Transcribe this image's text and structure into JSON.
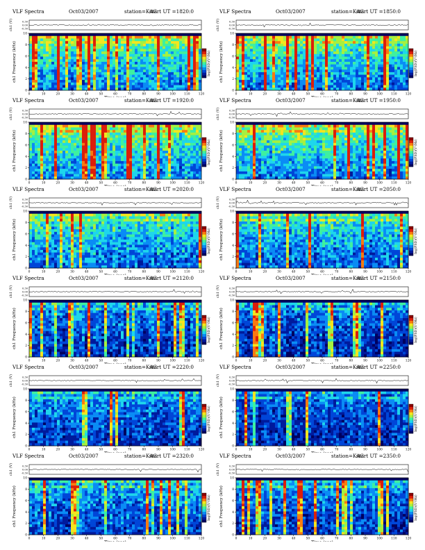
{
  "figure": {
    "colors": {
      "colormap": [
        "#000060",
        "#001a9c",
        "#0046d8",
        "#0a8cf5",
        "#1ed6ec",
        "#3ef0a0",
        "#a6f040",
        "#f5e51e",
        "#fa7a10",
        "#dc1e0a",
        "#8c0000"
      ],
      "accent_dark": "#00003c"
    }
  },
  "chart_data": [
    {
      "type": "heatmap",
      "title": "VLF Spectra",
      "date": "Oct03/2007",
      "station": "station=KAG",
      "start_ut": "start  UT  =1820:0",
      "ylabel_top": "ch1 (V)",
      "ylabel_main": "ch1 Frequency (kHz)",
      "xlabel": "Time (sec)",
      "colorbar_label": "log(PSD)(V²/Hz)",
      "x_ticks": [
        "0",
        "10",
        "20",
        "30",
        "40",
        "50",
        "60",
        "70",
        "80",
        "90",
        "100",
        "110",
        "120"
      ],
      "y_ticks": [
        "0",
        "2",
        "4",
        "6",
        "8",
        "10"
      ],
      "top_ticks": [
        "0.30",
        "0.00",
        "-0.30"
      ],
      "xlim": [
        0,
        120
      ],
      "ylim": [
        0,
        10
      ],
      "activity": 0.72
    },
    {
      "type": "heatmap",
      "title": "VLF Spectra",
      "date": "Oct03/2007",
      "station": "station=KAG",
      "start_ut": "start  UT  =1850:0",
      "ylabel_top": "ch1 (V)",
      "ylabel_main": "ch1 Frequency (kHz)",
      "xlabel": "Time (sec)",
      "colorbar_label": "log(PSD)(V²/Hz)",
      "x_ticks": [
        "0",
        "10",
        "20",
        "30",
        "40",
        "50",
        "60",
        "70",
        "80",
        "90",
        "100",
        "110",
        "120"
      ],
      "y_ticks": [
        "0",
        "2",
        "4",
        "6",
        "8",
        "10"
      ],
      "top_ticks": [
        "0.30",
        "0.00",
        "-0.30"
      ],
      "xlim": [
        0,
        120
      ],
      "ylim": [
        0,
        10
      ],
      "activity": 0.7
    },
    {
      "type": "heatmap",
      "title": "VLF Spectra",
      "date": "Oct03/2007",
      "station": "station=KAG",
      "start_ut": "start  UT  =1920:0",
      "ylabel_top": "ch1 (V)",
      "ylabel_main": "ch1 Frequency (kHz)",
      "xlabel": "Time (sec)",
      "colorbar_label": "log(PSD)(V²/Hz)",
      "x_ticks": [
        "0",
        "10",
        "20",
        "30",
        "40",
        "50",
        "60",
        "70",
        "80",
        "90",
        "100",
        "110",
        "120"
      ],
      "y_ticks": [
        "0",
        "2",
        "4",
        "6",
        "8",
        "10"
      ],
      "top_ticks": [
        "0.30",
        "0.00",
        "-0.30"
      ],
      "xlim": [
        0,
        120
      ],
      "ylim": [
        0,
        10
      ],
      "activity": 0.75
    },
    {
      "type": "heatmap",
      "title": "VLF Spectra",
      "date": "Oct03/2007",
      "station": "station=KAG",
      "start_ut": "start  UT  =1950:0",
      "ylabel_top": "ch1 (V)",
      "ylabel_main": "ch1 Frequency (kHz)",
      "xlabel": "Time (sec)",
      "colorbar_label": "log(PSD)(V²/Hz)",
      "x_ticks": [
        "0",
        "10",
        "20",
        "30",
        "40",
        "50",
        "60",
        "70",
        "80",
        "90",
        "100",
        "110",
        "120"
      ],
      "y_ticks": [
        "0",
        "2",
        "4",
        "6",
        "8",
        "10"
      ],
      "top_ticks": [
        "0.30",
        "0.00",
        "-0.30"
      ],
      "xlim": [
        0,
        120
      ],
      "ylim": [
        0,
        10
      ],
      "activity": 0.73
    },
    {
      "type": "heatmap",
      "title": "VLF Spectra",
      "date": "Oct03/2007",
      "station": "station=KAG",
      "start_ut": "start  UT  =2020:0",
      "ylabel_top": "ch1 (V)",
      "ylabel_main": "ch1 Frequency (kHz)",
      "xlabel": "Time (sec)",
      "colorbar_label": "log(PSD)(V²/Hz)",
      "x_ticks": [
        "0",
        "10",
        "20",
        "30",
        "40",
        "50",
        "60",
        "70",
        "80",
        "90",
        "100",
        "110",
        "120"
      ],
      "y_ticks": [
        "0",
        "2",
        "4",
        "6",
        "8",
        "10"
      ],
      "top_ticks": [
        "0.30",
        "0.00",
        "-0.30"
      ],
      "xlim": [
        0,
        120
      ],
      "ylim": [
        0,
        10
      ],
      "activity": 0.62
    },
    {
      "type": "heatmap",
      "title": "VLF Spectra",
      "date": "Oct03/2007",
      "station": "station=KAG",
      "start_ut": "start  UT  =2050:0",
      "ylabel_top": "ch1 (V)",
      "ylabel_main": "ch1 Frequency (kHz)",
      "xlabel": "Time (sec)",
      "colorbar_label": "log(PSD)(V²/Hz)",
      "x_ticks": [
        "0",
        "10",
        "20",
        "30",
        "40",
        "50",
        "60",
        "70",
        "80",
        "90",
        "100",
        "110",
        "120"
      ],
      "y_ticks": [
        "0",
        "2",
        "4",
        "6",
        "8",
        "10"
      ],
      "top_ticks": [
        "0.30",
        "0.00",
        "-0.30"
      ],
      "xlim": [
        0,
        120
      ],
      "ylim": [
        0,
        10
      ],
      "activity": 0.6
    },
    {
      "type": "heatmap",
      "title": "VLF Spectra",
      "date": "Oct03/2007",
      "station": "station=KAG",
      "start_ut": "start  UT  =2120:0",
      "ylabel_top": "ch1 (V)",
      "ylabel_main": "ch1 Frequency (kHz)",
      "xlabel": "Time (sec)",
      "colorbar_label": "log(PSD)(V²/Hz)",
      "x_ticks": [
        "0",
        "10",
        "20",
        "30",
        "40",
        "50",
        "60",
        "70",
        "80",
        "90",
        "100",
        "110",
        "120"
      ],
      "y_ticks": [
        "0",
        "2",
        "4",
        "6",
        "8",
        "10"
      ],
      "top_ticks": [
        "0.30",
        "0.00",
        "-0.30"
      ],
      "xlim": [
        0,
        120
      ],
      "ylim": [
        0,
        10
      ],
      "activity": 0.38
    },
    {
      "type": "heatmap",
      "title": "VLF Spectra",
      "date": "Oct03/2007",
      "station": "station=KAG",
      "start_ut": "start  UT  =2150:0",
      "ylabel_top": "ch1 (V)",
      "ylabel_main": "ch1 Frequency (kHz)",
      "xlabel": "Time (sec)",
      "colorbar_label": "log(PSD)(V²/Hz)",
      "x_ticks": [
        "0",
        "10",
        "20",
        "30",
        "40",
        "50",
        "60",
        "70",
        "80",
        "90",
        "100",
        "110",
        "120"
      ],
      "y_ticks": [
        "0",
        "2",
        "4",
        "6",
        "8",
        "10"
      ],
      "top_ticks": [
        "0.30",
        "0.00",
        "-0.30"
      ],
      "xlim": [
        0,
        120
      ],
      "ylim": [
        0,
        10
      ],
      "activity": 0.36
    },
    {
      "type": "heatmap",
      "title": "VLF Spectra",
      "date": "Oct03/2007",
      "station": "station=KAG",
      "start_ut": "start  UT  =2220:0",
      "ylabel_top": "ch1 (V)",
      "ylabel_main": "ch1 Frequency (kHz)",
      "xlabel": "Time (sec)",
      "colorbar_label": "log(PSD)(V²/Hz)",
      "x_ticks": [
        "0",
        "10",
        "20",
        "30",
        "40",
        "50",
        "60",
        "70",
        "80",
        "90",
        "100",
        "110",
        "120"
      ],
      "y_ticks": [
        "0",
        "2",
        "4",
        "6",
        "8",
        "10"
      ],
      "top_ticks": [
        "0.30",
        "0.00",
        "-0.30"
      ],
      "xlim": [
        0,
        120
      ],
      "ylim": [
        0,
        10
      ],
      "activity": 0.4
    },
    {
      "type": "heatmap",
      "title": "VLF Spectra",
      "date": "Oct03/2007",
      "station": "station=KAG",
      "start_ut": "start  UT  =2250:0",
      "ylabel_top": "ch1 (V)",
      "ylabel_main": "ch1 Frequency (kHz)",
      "xlabel": "Time (sec)",
      "colorbar_label": "log(PSD)(V²/Hz)",
      "x_ticks": [
        "0",
        "10",
        "20",
        "30",
        "40",
        "50",
        "60",
        "70",
        "80",
        "90",
        "100",
        "110",
        "120"
      ],
      "y_ticks": [
        "0",
        "2",
        "4",
        "6",
        "8",
        "10"
      ],
      "top_ticks": [
        "0.30",
        "0.00",
        "-0.30"
      ],
      "xlim": [
        0,
        120
      ],
      "ylim": [
        0,
        10
      ],
      "activity": 0.34
    },
    {
      "type": "heatmap",
      "title": "VLF Spectra",
      "date": "Oct03/2007",
      "station": "station=KAG",
      "start_ut": "start  UT  =2320:0",
      "ylabel_top": "ch1 (V)",
      "ylabel_main": "ch1 Frequency (kHz)",
      "xlabel": "Time (sec)",
      "colorbar_label": "log(PSD)(V²/Hz)",
      "x_ticks": [
        "0",
        "10",
        "20",
        "30",
        "40",
        "50",
        "60",
        "70",
        "80",
        "90",
        "100",
        "110",
        "120"
      ],
      "y_ticks": [
        "0",
        "2",
        "4",
        "6",
        "8",
        "10"
      ],
      "top_ticks": [
        "0.30",
        "0.00",
        "-0.30"
      ],
      "xlim": [
        0,
        120
      ],
      "ylim": [
        0,
        10
      ],
      "activity": 0.44
    },
    {
      "type": "heatmap",
      "title": "VLF Spectra",
      "date": "Oct03/2007",
      "station": "station=KAG",
      "start_ut": "start  UT  =2350:0",
      "ylabel_top": "ch1 (V)",
      "ylabel_main": "ch1 Frequency (kHz)",
      "xlabel": "Time (sec)",
      "colorbar_label": "log(PSD)(V²/Hz)",
      "x_ticks": [
        "0",
        "10",
        "20",
        "30",
        "40",
        "50",
        "60",
        "70",
        "80",
        "90",
        "100",
        "110",
        "120"
      ],
      "y_ticks": [
        "0",
        "2",
        "4",
        "6",
        "8",
        "10"
      ],
      "top_ticks": [
        "0.30",
        "0.00",
        "-0.30"
      ],
      "xlim": [
        0,
        120
      ],
      "ylim": [
        0,
        10
      ],
      "activity": 0.4
    }
  ]
}
